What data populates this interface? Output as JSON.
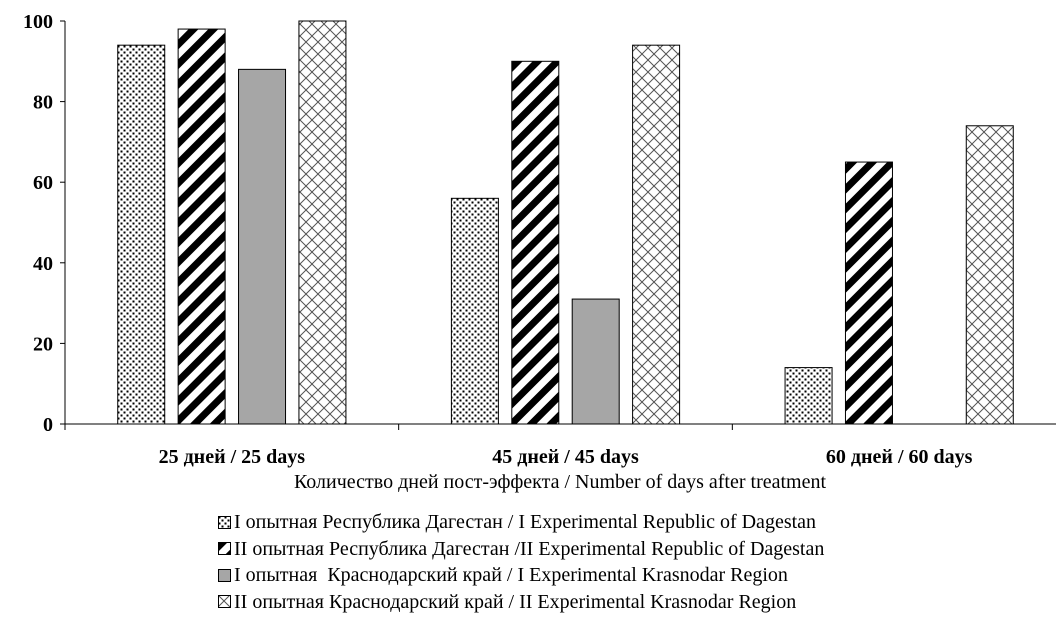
{
  "chart_data": {
    "type": "bar",
    "categories": [
      "25 дней / 25 days",
      "45 дней / 45 days",
      "60 дней / 60 days"
    ],
    "series": [
      {
        "name": "I опытная Республика Дагестан / I Experimental Republic of Dagestan",
        "values": [
          94,
          56,
          14
        ],
        "pattern": "dots"
      },
      {
        "name": "II опытная Республика Дагестан /II Experimental Republic of Dagestan",
        "values": [
          98,
          90,
          65
        ],
        "pattern": "diagonal"
      },
      {
        "name": "I опытная  Краснодарский край / I Experimental Krasnodar Region",
        "values": [
          88,
          31,
          0
        ],
        "pattern": "solid-gray"
      },
      {
        "name": "II опытная Краснодарский край / II Experimental Krasnodar Region",
        "values": [
          100,
          94,
          74
        ],
        "pattern": "lattice"
      }
    ],
    "xlabel": "Количество дней пост-эффекта / Number of days after treatment",
    "ylabel": "",
    "ylim": [
      0,
      100
    ],
    "yticks": [
      "0",
      "20",
      "40",
      "60",
      "80",
      "100"
    ],
    "grid": false,
    "legend_position": "bottom",
    "colors": {
      "bar_gray": "#a6a6a6",
      "outline": "#000000",
      "background": "#ffffff"
    }
  }
}
